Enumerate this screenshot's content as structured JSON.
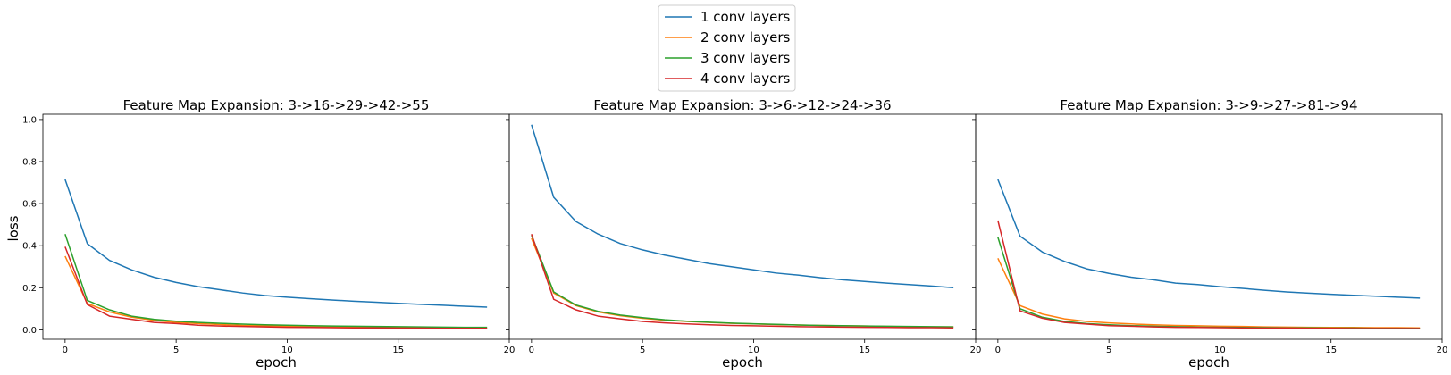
{
  "chart_data": {
    "type": "line",
    "ylabel": "loss",
    "legend": {
      "placement": "top-center",
      "entries": [
        {
          "name": "1 conv layers",
          "color": "#1f77b4"
        },
        {
          "name": "2 conv layers",
          "color": "#ff7f0e"
        },
        {
          "name": "3 conv layers",
          "color": "#2ca02c"
        },
        {
          "name": "4 conv layers",
          "color": "#d62728"
        }
      ]
    },
    "ylim": [
      -0.045,
      1.025
    ],
    "xlim": [
      -1,
      20
    ],
    "xticks": [
      0,
      5,
      10,
      15,
      20
    ],
    "yticks": [
      0.0,
      0.2,
      0.4,
      0.6,
      0.8,
      1.0
    ],
    "x": [
      0,
      1,
      2,
      3,
      4,
      5,
      6,
      7,
      8,
      9,
      10,
      11,
      12,
      13,
      14,
      15,
      16,
      17,
      18,
      19
    ],
    "subplots": [
      {
        "title": "Feature Map Expansion: 3->16->29->42->55",
        "xlabel": "epoch",
        "series": [
          {
            "name": "1 conv layers",
            "color": "#1f77b4",
            "values": [
              0.715,
              0.41,
              0.33,
              0.285,
              0.25,
              0.225,
              0.205,
              0.19,
              0.175,
              0.163,
              0.155,
              0.148,
              0.142,
              0.136,
              0.131,
              0.126,
              0.121,
              0.117,
              0.112,
              0.108
            ]
          },
          {
            "name": "2 conv layers",
            "color": "#ff7f0e",
            "values": [
              0.35,
              0.125,
              0.085,
              0.06,
              0.045,
              0.035,
              0.03,
              0.025,
              0.021,
              0.019,
              0.017,
              0.015,
              0.014,
              0.013,
              0.012,
              0.011,
              0.01,
              0.01,
              0.009,
              0.009
            ]
          },
          {
            "name": "3 conv layers",
            "color": "#2ca02c",
            "values": [
              0.455,
              0.14,
              0.095,
              0.065,
              0.05,
              0.041,
              0.035,
              0.031,
              0.027,
              0.024,
              0.022,
              0.02,
              0.018,
              0.017,
              0.016,
              0.015,
              0.014,
              0.013,
              0.012,
              0.012
            ]
          },
          {
            "name": "4 conv layers",
            "color": "#d62728",
            "values": [
              0.395,
              0.12,
              0.065,
              0.05,
              0.035,
              0.03,
              0.022,
              0.018,
              0.016,
              0.014,
              0.012,
              0.011,
              0.01,
              0.009,
              0.009,
              0.008,
              0.008,
              0.007,
              0.007,
              0.007
            ]
          }
        ]
      },
      {
        "title": "Feature Map Expansion: 3->6->12->24->36",
        "xlabel": "epoch",
        "series": [
          {
            "name": "1 conv layers",
            "color": "#1f77b4",
            "values": [
              0.975,
              0.63,
              0.515,
              0.455,
              0.41,
              0.38,
              0.355,
              0.335,
              0.315,
              0.3,
              0.285,
              0.27,
              0.26,
              0.248,
              0.238,
              0.23,
              0.222,
              0.215,
              0.208,
              0.2
            ]
          },
          {
            "name": "2 conv layers",
            "color": "#ff7f0e",
            "values": [
              0.435,
              0.175,
              0.115,
              0.085,
              0.067,
              0.055,
              0.046,
              0.04,
              0.035,
              0.031,
              0.028,
              0.025,
              0.023,
              0.021,
              0.019,
              0.018,
              0.016,
              0.015,
              0.014,
              0.014
            ]
          },
          {
            "name": "3 conv layers",
            "color": "#2ca02c",
            "values": [
              0.45,
              0.18,
              0.118,
              0.088,
              0.07,
              0.058,
              0.048,
              0.041,
              0.036,
              0.032,
              0.029,
              0.026,
              0.023,
              0.021,
              0.02,
              0.018,
              0.017,
              0.016,
              0.015,
              0.014
            ]
          },
          {
            "name": "4 conv layers",
            "color": "#d62728",
            "values": [
              0.455,
              0.145,
              0.095,
              0.065,
              0.052,
              0.04,
              0.033,
              0.028,
              0.024,
              0.021,
              0.019,
              0.017,
              0.015,
              0.014,
              0.013,
              0.012,
              0.011,
              0.01,
              0.01,
              0.009
            ]
          }
        ]
      },
      {
        "title": "Feature Map Expansion: 3->9->27->81->94",
        "xlabel": "epoch",
        "series": [
          {
            "name": "1 conv layers",
            "color": "#1f77b4",
            "values": [
              0.715,
              0.445,
              0.37,
              0.325,
              0.29,
              0.268,
              0.25,
              0.238,
              0.222,
              0.215,
              0.205,
              0.197,
              0.188,
              0.18,
              0.174,
              0.169,
              0.164,
              0.16,
              0.155,
              0.151
            ]
          },
          {
            "name": "2 conv layers",
            "color": "#ff7f0e",
            "values": [
              0.34,
              0.115,
              0.075,
              0.052,
              0.04,
              0.033,
              0.028,
              0.024,
              0.021,
              0.019,
              0.017,
              0.016,
              0.014,
              0.013,
              0.012,
              0.011,
              0.011,
              0.01,
              0.01,
              0.009
            ]
          },
          {
            "name": "3 conv layers",
            "color": "#2ca02c",
            "values": [
              0.44,
              0.1,
              0.06,
              0.04,
              0.03,
              0.024,
              0.02,
              0.017,
              0.015,
              0.013,
              0.012,
              0.011,
              0.01,
              0.009,
              0.009,
              0.008,
              0.008,
              0.007,
              0.007,
              0.007
            ]
          },
          {
            "name": "4 conv layers",
            "color": "#d62728",
            "values": [
              0.52,
              0.09,
              0.055,
              0.035,
              0.027,
              0.02,
              0.017,
              0.014,
              0.012,
              0.011,
              0.01,
              0.009,
              0.008,
              0.008,
              0.007,
              0.007,
              0.006,
              0.006,
              0.006,
              0.006
            ]
          }
        ]
      }
    ]
  }
}
